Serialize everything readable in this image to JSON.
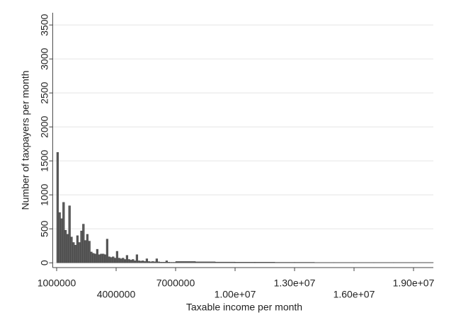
{
  "chart_data": {
    "type": "histogram",
    "x_label": "Taxable income per month",
    "y_label": "Number of taxpayers per month",
    "color": "#5a5a5a",
    "bins": [
      1000000,
      1100000,
      1200000,
      1300000,
      1400000,
      1500000,
      1600000,
      1700000,
      1800000,
      1900000,
      2000000,
      2100000,
      2200000,
      2300000,
      2400000,
      2500000,
      2600000,
      2700000,
      2800000,
      2900000,
      3000000,
      3100000,
      3200000,
      3300000,
      3400000,
      3500000,
      3600000,
      3700000,
      3800000,
      3900000,
      4000000,
      4100000,
      4200000,
      4300000,
      4400000,
      4500000,
      4600000,
      4700000,
      4800000,
      4900000,
      5000000,
      5100000,
      5200000,
      5300000,
      5400000,
      5500000,
      5600000,
      5700000,
      5800000,
      5900000,
      6000000,
      6100000,
      6200000,
      6300000,
      6400000,
      6500000,
      6600000,
      6700000,
      6800000,
      6900000,
      7000000,
      8000000,
      9000000,
      10000000,
      11000000,
      12000000,
      13000000,
      14000000,
      15000000,
      16000000,
      17000000,
      18000000,
      19000000,
      20000000
    ],
    "values": [
      1625,
      740,
      650,
      890,
      480,
      420,
      840,
      380,
      300,
      260,
      400,
      300,
      470,
      570,
      330,
      420,
      320,
      160,
      140,
      130,
      200,
      120,
      130,
      130,
      120,
      350,
      90,
      80,
      90,
      70,
      170,
      70,
      60,
      70,
      50,
      110,
      50,
      40,
      50,
      30,
      120,
      30,
      25,
      30,
      20,
      60,
      20,
      15,
      20,
      15,
      60,
      15,
      10,
      10,
      10,
      30,
      10,
      8,
      8,
      8,
      20,
      15,
      12,
      10,
      10,
      8,
      8,
      6,
      6,
      5,
      5,
      5,
      5
    ],
    "xlim": [
      800000,
      20000000
    ],
    "xticks": [
      1000000,
      4000000,
      7000000,
      {
        "value": 10000000,
        "label": "1.00e+07"
      },
      {
        "value": 13000000,
        "label": "1.30e+07"
      },
      {
        "value": 16000000,
        "label": "1.60e+07"
      },
      {
        "value": 19000000,
        "label": "1.90e+07"
      }
    ],
    "ylim": [
      -70,
      3680
    ],
    "yticks": [
      0,
      500,
      1000,
      1500,
      2000,
      2500,
      3000,
      3500
    ],
    "grid": true
  }
}
